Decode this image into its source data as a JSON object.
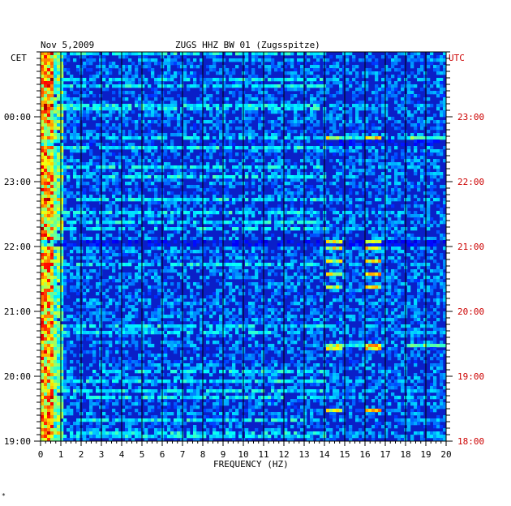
{
  "header": {
    "date": "Nov 5,2009",
    "station": "ZUGS HHZ BW 01 (Zugsspitze)"
  },
  "left_axis_label": "CET",
  "right_axis_label": "UTC",
  "footer_mark": "*",
  "colors": {
    "background": "#ffffff",
    "plot_background": "#0a1fc8",
    "grid": "#000000",
    "text": "#000000",
    "utc_text": "#cc0000"
  },
  "chart_data": {
    "type": "heatmap",
    "title": "ZUGS HHZ BW 01 (Zugsspitze)",
    "xlabel": "FREQUENCY (HZ)",
    "x_ticks": [
      "0",
      "1",
      "2",
      "3",
      "4",
      "5",
      "6",
      "7",
      "8",
      "9",
      "10",
      "11",
      "12",
      "13",
      "14",
      "15",
      "16",
      "17",
      "18",
      "19",
      "20"
    ],
    "xlim": [
      0,
      20
    ],
    "y_ticks_cet": [
      "00:00",
      "23:00",
      "22:00",
      "21:00",
      "20:00",
      "19:00"
    ],
    "y_ticks_utc": [
      "23:00",
      "22:00",
      "21:00",
      "20:00",
      "19:00",
      "18:00"
    ],
    "grid": true,
    "colormap": "blue-cyan-yellow-red (jet)",
    "features": [
      {
        "label": "low-frequency energy band",
        "freq_range_hz": [
          0,
          1
        ],
        "intensity": "high"
      },
      {
        "label": "spectral lines",
        "freq_hz": [
          14.4,
          16.4,
          16.6
        ],
        "intensity": "medium"
      },
      {
        "label": "broadband bursts",
        "time_cet": [
          "00:27",
          "19:26"
        ],
        "intensity": "medium"
      },
      {
        "label": "quiet gaps",
        "time_cet": [
          "23:40",
          "22:05"
        ],
        "intensity": "low"
      }
    ]
  }
}
